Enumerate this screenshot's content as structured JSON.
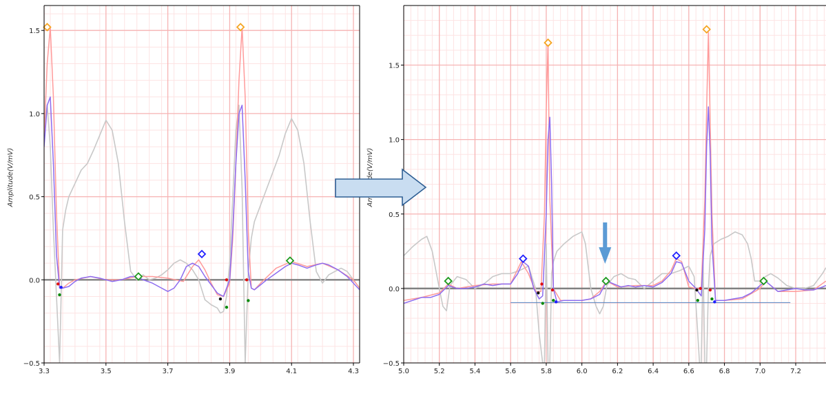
{
  "colors": {
    "grid_major": "#f6b3b3",
    "grid_minor": "#fde3e3",
    "baseline": "#808080",
    "raw": "#c8c8c8",
    "filtered": "#ff9a9a",
    "smoothed": "#8c6cf0",
    "r_peak": "#f5a623",
    "p_peak": "#1f1fff",
    "t_peak": "#1e9a1e",
    "onset": "#e01010",
    "offset": "#0a8a0a",
    "q_point": "#111111",
    "arrow_fill": "#c9ddf1",
    "arrow_stroke": "#2e5e93",
    "down_arrow": "#5b9bd5",
    "reference_line": "#4f7fc0"
  },
  "icons": {
    "transition": "right-arrow-icon",
    "marker": "down-arrow-icon"
  },
  "chart_data": [
    {
      "type": "line",
      "ylabel": "Amplitude(V/mV)",
      "xlim": [
        3.3,
        4.32
      ],
      "ylim": [
        -0.5,
        1.65
      ],
      "xticks": [
        "3.3",
        "3.5",
        "3.7",
        "3.9",
        "4.1",
        "4.3"
      ],
      "yticks": [
        "1.5",
        "1.0",
        "0.5",
        "0.0",
        "−0.5"
      ],
      "grid": true,
      "series": [
        {
          "role": "raw",
          "x": [
            3.3,
            3.31,
            3.32,
            3.33,
            3.34,
            3.35,
            3.36,
            3.37,
            3.38,
            3.4,
            3.42,
            3.44,
            3.46,
            3.48,
            3.5,
            3.52,
            3.54,
            3.56,
            3.58,
            3.6,
            3.62,
            3.64,
            3.66,
            3.68,
            3.7,
            3.72,
            3.74,
            3.76,
            3.78,
            3.8,
            3.82,
            3.84,
            3.86,
            3.87,
            3.88,
            3.89,
            3.9,
            3.91,
            3.92,
            3.93,
            3.94,
            3.95,
            3.96,
            3.97,
            3.98,
            4.0,
            4.02,
            4.04,
            4.06,
            4.08,
            4.1,
            4.12,
            4.14,
            4.16,
            4.18,
            4.2,
            4.22,
            4.24,
            4.26,
            4.28,
            4.3,
            4.32
          ],
          "y": [
            0.9,
            1.05,
            0.8,
            0.3,
            -0.1,
            -0.5,
            0.3,
            0.42,
            0.5,
            0.58,
            0.66,
            0.7,
            0.78,
            0.87,
            0.96,
            0.9,
            0.7,
            0.35,
            0.05,
            0.0,
            0.03,
            0.0,
            0.01,
            0.03,
            0.06,
            0.1,
            0.12,
            0.1,
            0.06,
            0.0,
            -0.12,
            -0.15,
            -0.17,
            -0.2,
            -0.19,
            -0.1,
            0.1,
            0.5,
            0.9,
            1.05,
            0.55,
            -0.5,
            0.05,
            0.25,
            0.35,
            0.45,
            0.55,
            0.65,
            0.75,
            0.88,
            0.97,
            0.9,
            0.7,
            0.35,
            0.05,
            -0.02,
            0.03,
            0.05,
            0.07,
            0.05,
            0.0,
            -0.05
          ]
        },
        {
          "role": "filtered",
          "x": [
            3.3,
            3.31,
            3.32,
            3.33,
            3.34,
            3.35,
            3.36,
            3.38,
            3.4,
            3.45,
            3.5,
            3.55,
            3.6,
            3.65,
            3.7,
            3.75,
            3.78,
            3.8,
            3.82,
            3.84,
            3.86,
            3.88,
            3.9,
            3.91,
            3.92,
            3.93,
            3.94,
            3.95,
            3.96,
            3.97,
            3.98,
            4.0,
            4.05,
            4.1,
            4.15,
            4.2,
            4.25,
            4.3,
            4.32
          ],
          "y": [
            0.85,
            1.3,
            1.52,
            1.1,
            0.4,
            -0.05,
            -0.05,
            -0.02,
            0.0,
            0.02,
            0.0,
            0.0,
            0.02,
            0.02,
            0.01,
            -0.01,
            0.08,
            0.12,
            0.06,
            -0.02,
            -0.09,
            -0.1,
            -0.02,
            0.25,
            0.7,
            1.2,
            1.52,
            1.1,
            0.3,
            -0.05,
            -0.06,
            -0.02,
            0.07,
            0.11,
            0.08,
            0.1,
            0.06,
            0.0,
            -0.05
          ]
        },
        {
          "role": "smoothed",
          "x": [
            3.3,
            3.31,
            3.32,
            3.33,
            3.34,
            3.35,
            3.36,
            3.38,
            3.4,
            3.42,
            3.45,
            3.48,
            3.5,
            3.52,
            3.55,
            3.58,
            3.6,
            3.62,
            3.65,
            3.68,
            3.7,
            3.72,
            3.74,
            3.76,
            3.78,
            3.8,
            3.82,
            3.84,
            3.86,
            3.88,
            3.9,
            3.91,
            3.92,
            3.93,
            3.94,
            3.95,
            3.96,
            3.97,
            3.98,
            4.0,
            4.02,
            4.05,
            4.08,
            4.1,
            4.12,
            4.15,
            4.18,
            4.2,
            4.22,
            4.25,
            4.28,
            4.3,
            4.32
          ],
          "y": [
            0.8,
            1.05,
            1.1,
            0.7,
            0.15,
            -0.05,
            -0.05,
            -0.04,
            -0.01,
            0.01,
            0.02,
            0.01,
            0.0,
            -0.01,
            0.0,
            0.02,
            0.02,
            0.0,
            -0.02,
            -0.05,
            -0.07,
            -0.05,
            0.0,
            0.08,
            0.1,
            0.08,
            0.02,
            -0.03,
            -0.08,
            -0.1,
            0.0,
            0.3,
            0.7,
            1.0,
            1.05,
            0.6,
            0.05,
            -0.05,
            -0.06,
            -0.03,
            0.0,
            0.04,
            0.08,
            0.1,
            0.09,
            0.07,
            0.09,
            0.1,
            0.09,
            0.06,
            0.02,
            -0.02,
            -0.06
          ]
        }
      ],
      "markers": [
        {
          "kind": "r-peak",
          "x": 3.31,
          "y": 1.52
        },
        {
          "kind": "r-peak",
          "x": 3.935,
          "y": 1.52
        },
        {
          "kind": "p-peak",
          "x": 3.81,
          "y": 0.155
        },
        {
          "kind": "t-peak",
          "x": 3.605,
          "y": 0.02
        },
        {
          "kind": "t-peak",
          "x": 4.095,
          "y": 0.115
        },
        {
          "kind": "onset",
          "x": 3.345,
          "y": -0.025
        },
        {
          "kind": "onset",
          "x": 3.89,
          "y": 0.0
        },
        {
          "kind": "onset",
          "x": 3.955,
          "y": 0.0
        },
        {
          "kind": "offset",
          "x": 3.35,
          "y": -0.09
        },
        {
          "kind": "offset",
          "x": 3.89,
          "y": -0.165
        },
        {
          "kind": "offset",
          "x": 3.96,
          "y": -0.125
        },
        {
          "kind": "q-point",
          "x": 3.87,
          "y": -0.115
        },
        {
          "kind": "s-point",
          "x": 3.355,
          "y": -0.045
        }
      ]
    },
    {
      "type": "line",
      "ylabel": "Amplitude(V/mV)",
      "xlim": [
        5.0,
        7.37
      ],
      "ylim": [
        -0.5,
        1.9
      ],
      "xticks": [
        "5.0",
        "5.2",
        "5.4",
        "5.6",
        "5.8",
        "6.0",
        "6.2",
        "6.4",
        "6.6",
        "6.8",
        "7.0",
        "7.2"
      ],
      "yticks": [
        "1.5",
        "1.0",
        "0.5",
        "0.0",
        "−0.5"
      ],
      "grid": true,
      "series": [
        {
          "role": "raw",
          "x": [
            5.0,
            5.05,
            5.1,
            5.13,
            5.16,
            5.2,
            5.22,
            5.24,
            5.26,
            5.3,
            5.35,
            5.4,
            5.45,
            5.5,
            5.55,
            5.6,
            5.65,
            5.7,
            5.74,
            5.76,
            5.78,
            5.79,
            5.8,
            5.81,
            5.82,
            5.83,
            5.84,
            5.86,
            5.9,
            5.95,
            6.0,
            6.02,
            6.05,
            6.08,
            6.1,
            6.12,
            6.14,
            6.18,
            6.22,
            6.26,
            6.3,
            6.35,
            6.4,
            6.45,
            6.5,
            6.55,
            6.6,
            6.63,
            6.65,
            6.66,
            6.67,
            6.68,
            6.69,
            6.7,
            6.71,
            6.72,
            6.74,
            6.78,
            6.82,
            6.86,
            6.9,
            6.93,
            6.95,
            6.97,
            7.0,
            7.03,
            7.06,
            7.1,
            7.15,
            7.2,
            7.25,
            7.3,
            7.35,
            7.37
          ],
          "y": [
            0.22,
            0.28,
            0.33,
            0.35,
            0.25,
            0.0,
            -0.12,
            -0.15,
            0.02,
            0.08,
            0.06,
            0.0,
            0.03,
            0.08,
            0.1,
            0.1,
            0.12,
            0.15,
            0.0,
            -0.3,
            -0.5,
            -0.5,
            0.3,
            -0.5,
            -0.5,
            0.1,
            0.18,
            0.25,
            0.3,
            0.35,
            0.38,
            0.3,
            0.0,
            -0.12,
            -0.17,
            -0.12,
            0.02,
            0.08,
            0.1,
            0.07,
            0.06,
            0.0,
            0.05,
            0.1,
            0.1,
            0.12,
            0.15,
            0.08,
            -0.3,
            -0.5,
            -0.5,
            0.2,
            -0.5,
            -0.5,
            0.0,
            0.22,
            0.3,
            0.33,
            0.35,
            0.38,
            0.36,
            0.3,
            0.2,
            0.05,
            0.05,
            0.08,
            0.1,
            0.07,
            0.02,
            0.0,
            0.0,
            0.02,
            0.1,
            0.14
          ]
        },
        {
          "role": "filtered",
          "x": [
            5.0,
            5.1,
            5.2,
            5.25,
            5.3,
            5.4,
            5.5,
            5.6,
            5.66,
            5.7,
            5.74,
            5.77,
            5.79,
            5.8,
            5.81,
            5.82,
            5.84,
            5.88,
            5.95,
            6.0,
            6.05,
            6.1,
            6.14,
            6.2,
            6.3,
            6.4,
            6.45,
            6.5,
            6.53,
            6.56,
            6.6,
            6.64,
            6.67,
            6.69,
            6.7,
            6.71,
            6.73,
            6.75,
            6.8,
            6.9,
            7.0,
            7.03,
            7.06,
            7.1,
            7.2,
            7.3,
            7.37
          ],
          "y": [
            -0.08,
            -0.06,
            -0.03,
            0.03,
            0.0,
            0.02,
            0.03,
            0.03,
            0.18,
            0.1,
            -0.02,
            -0.02,
            0.5,
            1.2,
            1.65,
            0.6,
            0.0,
            -0.08,
            -0.08,
            -0.08,
            -0.07,
            -0.02,
            0.05,
            0.01,
            0.02,
            0.02,
            0.05,
            0.12,
            0.2,
            0.18,
            0.01,
            0.0,
            0.0,
            0.6,
            1.2,
            1.72,
            0.5,
            -0.08,
            -0.08,
            -0.07,
            0.0,
            0.05,
            0.02,
            -0.02,
            -0.02,
            -0.01,
            0.05
          ]
        },
        {
          "role": "smoothed",
          "x": [
            5.0,
            5.05,
            5.1,
            5.15,
            5.2,
            5.25,
            5.3,
            5.35,
            5.4,
            5.45,
            5.5,
            5.55,
            5.6,
            5.64,
            5.67,
            5.7,
            5.73,
            5.76,
            5.78,
            5.8,
            5.81,
            5.82,
            5.83,
            5.84,
            5.86,
            5.9,
            5.95,
            6.0,
            6.05,
            6.1,
            6.14,
            6.18,
            6.22,
            6.26,
            6.3,
            6.35,
            6.4,
            6.45,
            6.5,
            6.53,
            6.56,
            6.6,
            6.64,
            6.67,
            6.69,
            6.7,
            6.71,
            6.72,
            6.73,
            6.75,
            6.8,
            6.85,
            6.9,
            6.95,
            7.0,
            7.03,
            7.06,
            7.1,
            7.15,
            7.2,
            7.25,
            7.3,
            7.35,
            7.37
          ],
          "y": [
            -0.1,
            -0.08,
            -0.06,
            -0.06,
            -0.04,
            0.02,
            0.0,
            0.0,
            0.01,
            0.03,
            0.02,
            0.03,
            0.03,
            0.1,
            0.18,
            0.15,
            0.0,
            -0.07,
            -0.05,
            0.5,
            1.0,
            1.15,
            0.7,
            0.0,
            -0.09,
            -0.08,
            -0.08,
            -0.08,
            -0.07,
            -0.04,
            0.05,
            0.03,
            0.01,
            0.02,
            0.01,
            0.02,
            0.01,
            0.04,
            0.1,
            0.18,
            0.17,
            0.05,
            0.0,
            -0.05,
            0.4,
            0.95,
            1.22,
            0.9,
            0.3,
            -0.08,
            -0.08,
            -0.07,
            -0.06,
            -0.03,
            0.02,
            0.05,
            0.02,
            -0.02,
            -0.01,
            0.0,
            -0.01,
            -0.01,
            0.01,
            0.02
          ]
        }
      ],
      "markers": [
        {
          "kind": "r-peak",
          "x": 5.81,
          "y": 1.65
        },
        {
          "kind": "r-peak",
          "x": 6.7,
          "y": 1.74
        },
        {
          "kind": "p-peak",
          "x": 5.67,
          "y": 0.2
        },
        {
          "kind": "p-peak",
          "x": 6.53,
          "y": 0.22
        },
        {
          "kind": "t-peak",
          "x": 5.25,
          "y": 0.05
        },
        {
          "kind": "t-peak",
          "x": 6.135,
          "y": 0.05
        },
        {
          "kind": "t-peak",
          "x": 7.02,
          "y": 0.05
        },
        {
          "kind": "onset",
          "x": 5.775,
          "y": 0.03
        },
        {
          "kind": "onset",
          "x": 5.835,
          "y": -0.01
        },
        {
          "kind": "onset",
          "x": 6.665,
          "y": 0.0
        },
        {
          "kind": "onset",
          "x": 6.72,
          "y": -0.01
        },
        {
          "kind": "offset",
          "x": 5.78,
          "y": -0.1
        },
        {
          "kind": "offset",
          "x": 5.84,
          "y": -0.08
        },
        {
          "kind": "offset",
          "x": 6.65,
          "y": -0.08
        },
        {
          "kind": "offset",
          "x": 6.73,
          "y": -0.07
        },
        {
          "kind": "q-point",
          "x": 5.755,
          "y": -0.03
        },
        {
          "kind": "q-point",
          "x": 6.645,
          "y": -0.01
        },
        {
          "kind": "s-point",
          "x": 5.855,
          "y": -0.09
        },
        {
          "kind": "s-point",
          "x": 6.745,
          "y": -0.09
        }
      ],
      "reference_line": {
        "x": [
          5.6,
          7.17
        ],
        "y": -0.095
      },
      "marker_arrow_x": 6.13
    }
  ]
}
